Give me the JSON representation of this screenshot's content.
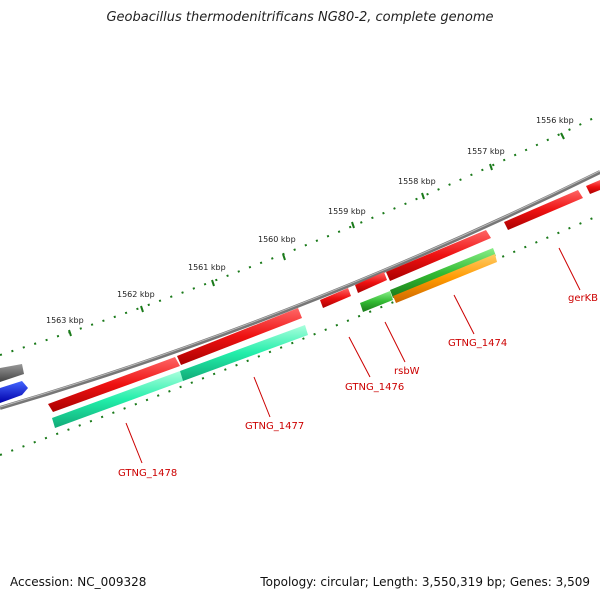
{
  "title": "Geobacillus thermodenitrificans NG80-2, complete genome",
  "ticks": [
    "1556 kbp",
    "1557 kbp",
    "1558 kbp",
    "1559 kbp",
    "1560 kbp",
    "1561 kbp",
    "1562 kbp",
    "1563 kbp"
  ],
  "genes": [
    "gerKB",
    "GTNG_1474",
    "rsbW",
    "GTNG_1476",
    "GTNG_1477",
    "GTNG_1478"
  ],
  "colors": {
    "backbone": "#777777",
    "tick": "#1a7a1a",
    "forward_gene": "#ee1111",
    "reverse_gene_teal": "#22eeaa",
    "reverse_gene_green": "#33bb33",
    "reverse_gene_orange": "#ff9900",
    "label": "#cc0000"
  },
  "footer": {
    "accession": "Accession: NC_009328",
    "summary": "Topology: circular; Length: 3,550,319 bp; Genes: 3,509"
  }
}
